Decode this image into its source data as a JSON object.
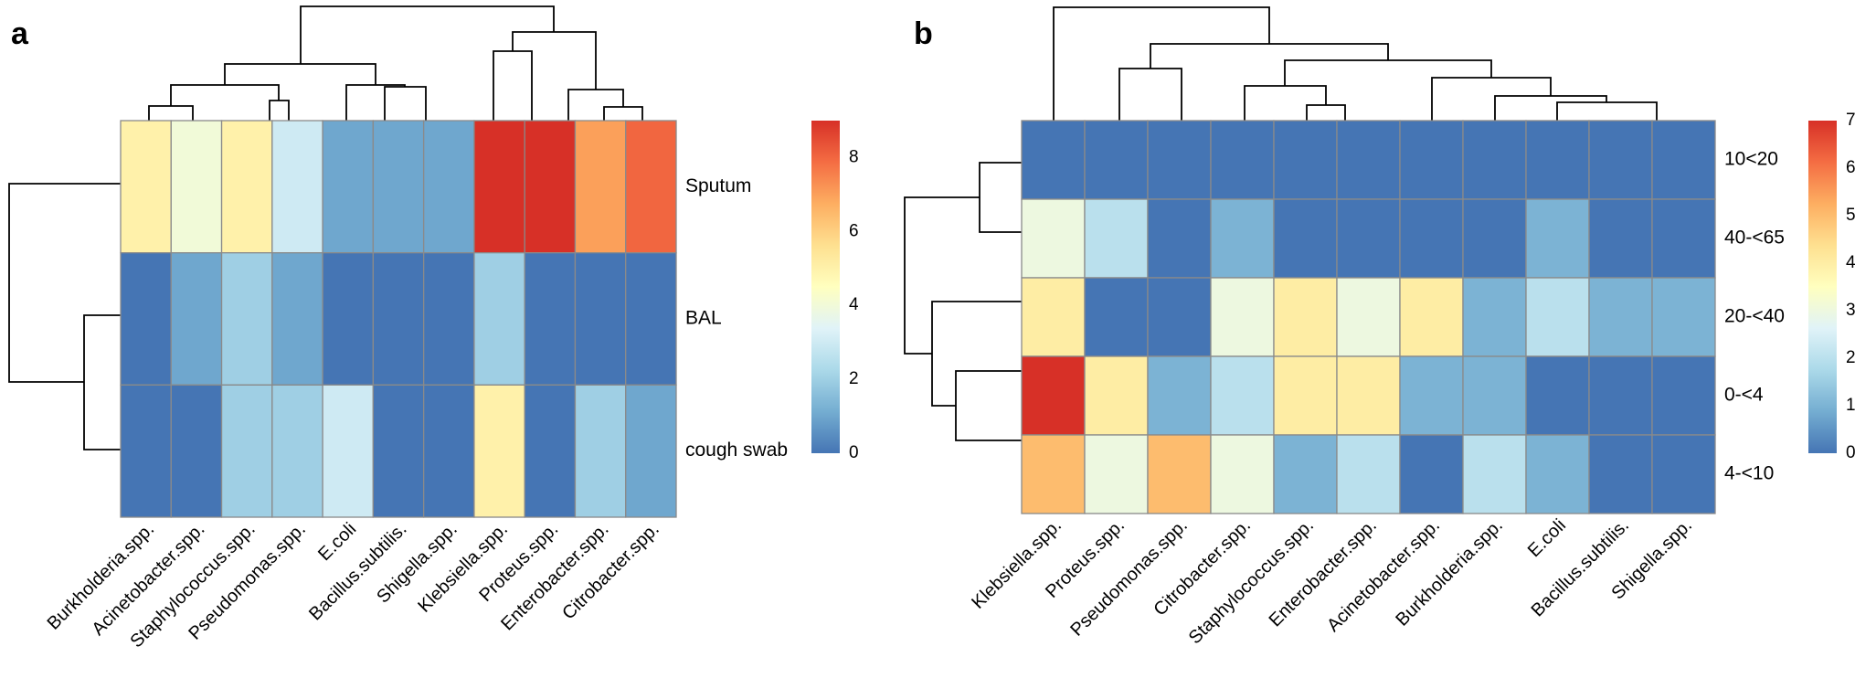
{
  "colors": {
    "scale": [
      "#4575b4",
      "#74add1",
      "#abd9e9",
      "#e0f3f8",
      "#ffffbf",
      "#fee090",
      "#fdae61",
      "#f46d43",
      "#d73027"
    ]
  },
  "chart_data": [
    {
      "panel": "a",
      "type": "heatmap",
      "rows": [
        "Sputum",
        "BAL",
        "cough swab"
      ],
      "columns": [
        "Burkholderia.spp.",
        "Acinetobacter.spp.",
        "Staphylococcus.spp.",
        "Pseudomonas.spp.",
        "E.coli",
        "Bacillus.subtilis.",
        "Shigella.spp.",
        "Klebsiella.spp.",
        "Proteus.spp.",
        "Enterobacter.spp.",
        "Citrobacter.spp."
      ],
      "values": [
        [
          5,
          4,
          5,
          3,
          1,
          1,
          1,
          9,
          9,
          7,
          8
        ],
        [
          0,
          1,
          2,
          1,
          0,
          0,
          0,
          2,
          0,
          0,
          0
        ],
        [
          0,
          0,
          2,
          2,
          3,
          0,
          0,
          5,
          0,
          2,
          1
        ]
      ],
      "colorbar": {
        "min": 0,
        "max": 9,
        "ticks": [
          0,
          2,
          4,
          6,
          8
        ]
      },
      "row_dendrogram": true,
      "column_dendrogram": true
    },
    {
      "panel": "b",
      "type": "heatmap",
      "rows": [
        "10<20",
        "40-<65",
        "20-<40",
        "0-<4",
        "4-<10"
      ],
      "columns": [
        "Klebsiella.spp.",
        "Proteus.spp.",
        "Pseudomonas.spp.",
        "Citrobacter.spp.",
        "Staphylococcus.spp.",
        "Enterobacter.spp.",
        "Acinetobacter.spp.",
        "Burkholderia.spp.",
        "E.coli",
        "Bacillus.subtilis.",
        "Shigella.spp."
      ],
      "values": [
        [
          0,
          0,
          0,
          0,
          0,
          0,
          0,
          0,
          0,
          0,
          0
        ],
        [
          3,
          2,
          0,
          1,
          0,
          0,
          0,
          0,
          1,
          0,
          0
        ],
        [
          4,
          0,
          0,
          3,
          4,
          3,
          4,
          1,
          2,
          1,
          1
        ],
        [
          7,
          4,
          1,
          2,
          4,
          4,
          1,
          1,
          0,
          0,
          0
        ],
        [
          5,
          3,
          5,
          3,
          1,
          2,
          0,
          2,
          1,
          0,
          0
        ]
      ],
      "colorbar": {
        "min": 0,
        "max": 7,
        "ticks": [
          0,
          1,
          2,
          3,
          4,
          5,
          6,
          7
        ]
      },
      "row_dendrogram": true,
      "column_dendrogram": true
    }
  ]
}
